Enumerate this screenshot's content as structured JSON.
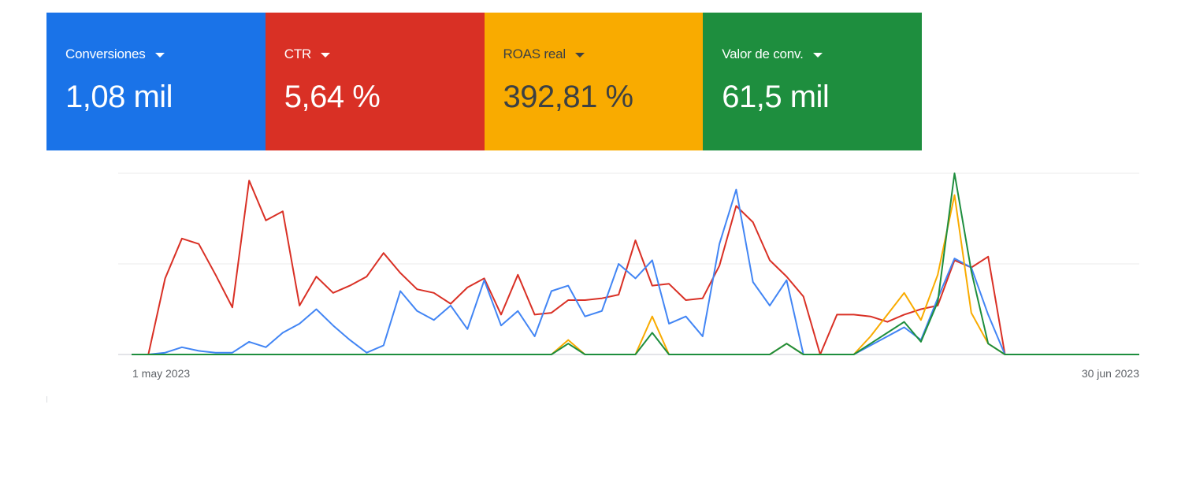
{
  "cards": [
    {
      "label": "Conversiones",
      "value": "1,08 mil",
      "bg": "#1a73e8",
      "fg": "#ffffff",
      "icon": "caret-down-icon"
    },
    {
      "label": "CTR",
      "value": "5,64 %",
      "bg": "#d93025",
      "fg": "#ffffff",
      "icon": "caret-down-icon"
    },
    {
      "label": "ROAS real",
      "value": "392,81 %",
      "bg": "#f9ab00",
      "fg": "#3c4043",
      "icon": "caret-down-icon"
    },
    {
      "label": "Valor de conv.",
      "value": "61,5 mil",
      "bg": "#1e8e3e",
      "fg": "#ffffff",
      "icon": "caret-down-icon"
    }
  ],
  "chart_data": {
    "type": "line",
    "x_start_label": "1 may 2023",
    "x_end_label": "30 jun 2023",
    "x": [
      1,
      2,
      3,
      4,
      5,
      6,
      7,
      8,
      9,
      10,
      11,
      12,
      13,
      14,
      15,
      16,
      17,
      18,
      19,
      20,
      21,
      22,
      23,
      24,
      25,
      26,
      27,
      28,
      29,
      30,
      31,
      32,
      33,
      34,
      35,
      36,
      37,
      38,
      39,
      40,
      41,
      42,
      43,
      44,
      45,
      46,
      47,
      48,
      49,
      50,
      51,
      52,
      53,
      54,
      55,
      56,
      57,
      58,
      59,
      60,
      61
    ],
    "x_unit": "day since 1 may 2023",
    "ylim": [
      0,
      100
    ],
    "grid": true,
    "y_gridlines": [
      0,
      50,
      100
    ],
    "series": [
      {
        "key": "ctr",
        "color": "#d93025",
        "values": [
          0,
          0,
          42,
          64,
          61,
          44,
          26,
          96,
          74,
          79,
          27,
          43,
          34,
          38,
          43,
          56,
          45,
          36,
          34,
          28,
          37,
          42,
          22,
          44,
          22,
          23,
          30,
          30,
          31,
          33,
          63,
          38,
          39,
          30,
          31,
          49,
          82,
          73,
          52,
          43,
          32,
          0,
          22,
          22,
          21,
          18,
          22,
          25,
          27,
          52,
          48,
          54,
          0,
          0,
          0,
          0,
          0,
          0,
          0,
          0,
          0
        ]
      },
      {
        "key": "conversiones",
        "color": "#4285f4",
        "values": [
          0,
          0,
          1,
          4,
          2,
          1,
          1,
          7,
          4,
          12,
          17,
          25,
          16,
          8,
          1,
          5,
          35,
          24,
          19,
          27,
          14,
          41,
          16,
          24,
          10,
          35,
          38,
          21,
          24,
          50,
          42,
          52,
          17,
          21,
          10,
          61,
          91,
          40,
          27,
          41,
          0,
          0,
          0,
          0,
          5,
          10,
          15,
          8,
          31,
          53,
          48,
          22,
          0,
          0,
          0,
          0,
          0,
          0,
          0,
          0,
          0
        ]
      },
      {
        "key": "roas_real",
        "color": "#f9ab00",
        "values": [
          0,
          0,
          0,
          0,
          0,
          0,
          0,
          0,
          0,
          0,
          0,
          0,
          0,
          0,
          0,
          0,
          0,
          0,
          0,
          0,
          0,
          0,
          0,
          0,
          0,
          0,
          8,
          0,
          0,
          0,
          0,
          21,
          0,
          0,
          0,
          0,
          0,
          0,
          0,
          6,
          0,
          0,
          0,
          0,
          10,
          22,
          34,
          19,
          44,
          88,
          23,
          6,
          0,
          0,
          0,
          0,
          0,
          0,
          0,
          0,
          0
        ]
      },
      {
        "key": "valor_conv",
        "color": "#1e8e3e",
        "values": [
          0,
          0,
          0,
          0,
          0,
          0,
          0,
          0,
          0,
          0,
          0,
          0,
          0,
          0,
          0,
          0,
          0,
          0,
          0,
          0,
          0,
          0,
          0,
          0,
          0,
          0,
          6,
          0,
          0,
          0,
          0,
          12,
          0,
          0,
          0,
          0,
          0,
          0,
          0,
          6,
          0,
          0,
          0,
          0,
          6,
          12,
          18,
          7,
          29,
          100,
          46,
          6,
          0,
          0,
          0,
          0,
          0,
          0,
          0,
          0,
          0
        ]
      }
    ]
  }
}
